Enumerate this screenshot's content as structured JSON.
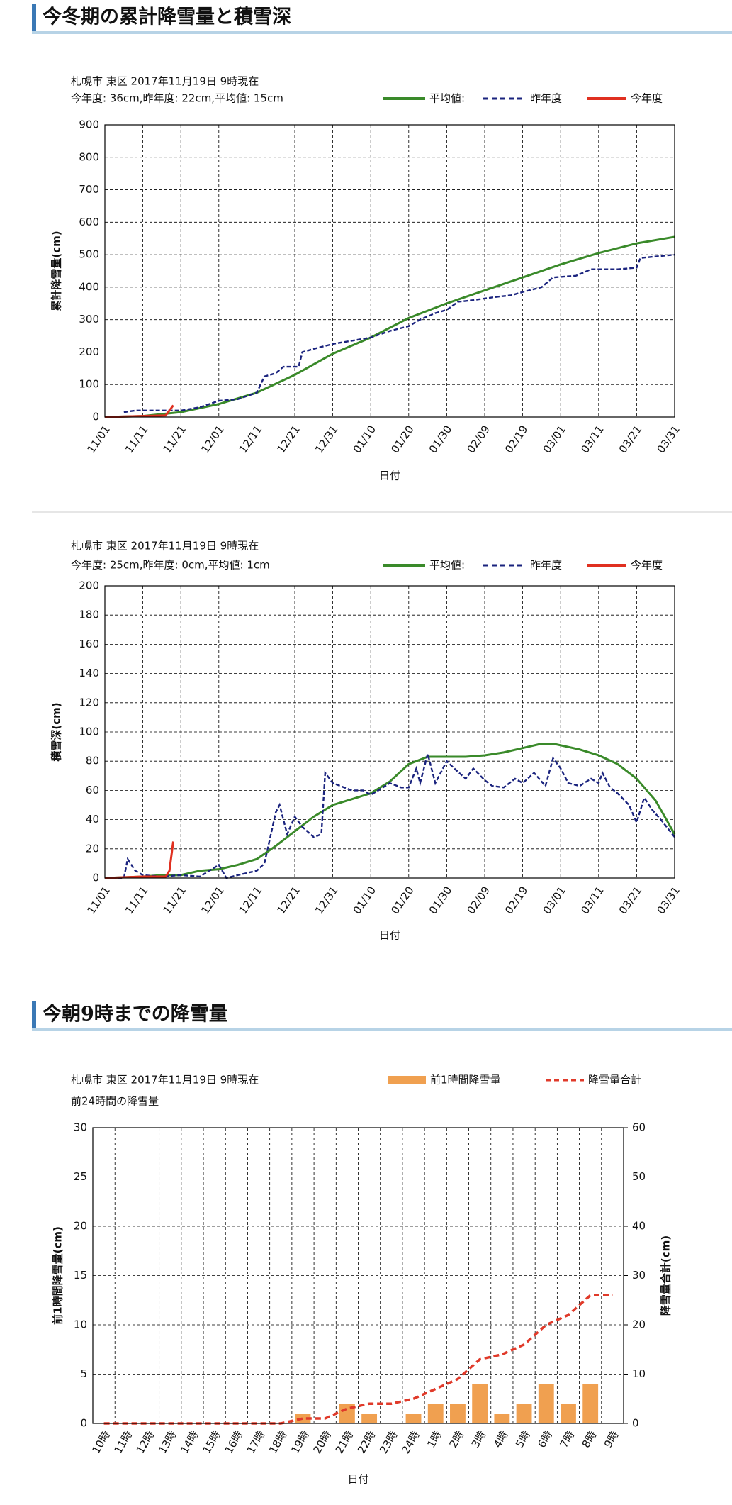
{
  "headings": [
    "今冬期の累計降雪量と積雪深",
    "今朝9時までの降雪量"
  ],
  "chart_data": [
    {
      "type": "line",
      "title": "札幌市 東区 2017年11月19日 9時現在",
      "subtitle": "今年度: 36cm,昨年度: 22cm,平均値: 15cm",
      "y_label": "累計降雪量(cm)",
      "x_label": "日付",
      "xlim": [
        0,
        150
      ],
      "xticks": [
        {
          "value": 0,
          "label": "11/01"
        },
        {
          "value": 10,
          "label": "11/11"
        },
        {
          "value": 20,
          "label": "11/21"
        },
        {
          "value": 30,
          "label": "12/01"
        },
        {
          "value": 40,
          "label": "12/11"
        },
        {
          "value": 50,
          "label": "12/21"
        },
        {
          "value": 60,
          "label": "12/31"
        },
        {
          "value": 70,
          "label": "01/10"
        },
        {
          "value": 80,
          "label": "01/20"
        },
        {
          "value": 90,
          "label": "01/30"
        },
        {
          "value": 100,
          "label": "02/09"
        },
        {
          "value": 110,
          "label": "02/19"
        },
        {
          "value": 120,
          "label": "03/01"
        },
        {
          "value": 130,
          "label": "03/11"
        },
        {
          "value": 140,
          "label": "03/21"
        },
        {
          "value": 150,
          "label": "03/31"
        }
      ],
      "ylim": [
        0,
        900
      ],
      "yticks": [
        0,
        100,
        200,
        300,
        400,
        500,
        600,
        700,
        800,
        900
      ],
      "grid": true,
      "series": [
        {
          "name": "平均値:",
          "color": "#3a8a2a",
          "line_style": "solid",
          "x": [
            0,
            10,
            20,
            30,
            40,
            50,
            60,
            70,
            80,
            90,
            100,
            110,
            120,
            130,
            140,
            150
          ],
          "values": [
            0,
            3,
            15,
            40,
            75,
            130,
            195,
            245,
            305,
            350,
            390,
            430,
            470,
            505,
            535,
            555
          ]
        },
        {
          "name": "昨年度",
          "color": "#1a237e",
          "line_style": "dashed",
          "x": [
            5,
            8,
            20,
            25,
            30,
            35,
            40,
            42,
            45,
            47,
            51,
            52,
            55,
            60,
            65,
            70,
            75,
            80,
            83,
            87,
            90,
            93,
            97,
            100,
            103,
            107,
            110,
            115,
            118,
            124,
            128,
            135,
            140,
            141,
            150
          ],
          "values": [
            15,
            20,
            20,
            30,
            50,
            55,
            75,
            125,
            135,
            155,
            155,
            200,
            210,
            225,
            235,
            245,
            265,
            280,
            300,
            320,
            330,
            355,
            360,
            365,
            370,
            375,
            385,
            400,
            430,
            435,
            455,
            455,
            460,
            490,
            500
          ]
        },
        {
          "name": "今年度",
          "color": "#e03020",
          "line_style": "solid",
          "x": [
            0,
            10,
            16,
            17,
            18
          ],
          "values": [
            0,
            3,
            5,
            20,
            36
          ]
        }
      ]
    },
    {
      "type": "line",
      "title": "札幌市 東区 2017年11月19日 9時現在",
      "subtitle": "今年度: 25cm,昨年度: 0cm,平均値: 1cm",
      "y_label": "積雪深(cm)",
      "x_label": "日付",
      "xlim": [
        0,
        150
      ],
      "xticks": [
        {
          "value": 0,
          "label": "11/01"
        },
        {
          "value": 10,
          "label": "11/11"
        },
        {
          "value": 20,
          "label": "11/21"
        },
        {
          "value": 30,
          "label": "12/01"
        },
        {
          "value": 40,
          "label": "12/11"
        },
        {
          "value": 50,
          "label": "12/21"
        },
        {
          "value": 60,
          "label": "12/31"
        },
        {
          "value": 70,
          "label": "01/10"
        },
        {
          "value": 80,
          "label": "01/20"
        },
        {
          "value": 90,
          "label": "01/30"
        },
        {
          "value": 100,
          "label": "02/09"
        },
        {
          "value": 110,
          "label": "02/19"
        },
        {
          "value": 120,
          "label": "03/01"
        },
        {
          "value": 130,
          "label": "03/11"
        },
        {
          "value": 140,
          "label": "03/21"
        },
        {
          "value": 150,
          "label": "03/31"
        }
      ],
      "ylim": [
        0,
        200
      ],
      "yticks": [
        0,
        20,
        40,
        60,
        80,
        100,
        120,
        140,
        160,
        180,
        200
      ],
      "grid": true,
      "series": [
        {
          "name": "平均値:",
          "color": "#3a8a2a",
          "line_style": "solid",
          "x": [
            0,
            10,
            15,
            20,
            25,
            30,
            35,
            40,
            45,
            50,
            55,
            60,
            65,
            70,
            75,
            80,
            85,
            95,
            100,
            105,
            110,
            115,
            118,
            125,
            130,
            135,
            140,
            145,
            150
          ],
          "values": [
            0,
            1,
            2,
            2,
            5,
            6,
            9,
            13,
            22,
            32,
            42,
            50,
            54,
            58,
            66,
            78,
            83,
            83,
            84,
            86,
            89,
            92,
            92,
            88,
            84,
            78,
            68,
            53,
            30
          ]
        },
        {
          "name": "昨年度",
          "color": "#1a237e",
          "line_style": "dashed",
          "x": [
            0,
            5,
            6,
            8,
            10,
            15,
            20,
            25,
            30,
            32,
            35,
            40,
            42,
            45,
            46,
            48,
            50,
            52,
            55,
            57,
            58,
            60,
            62,
            65,
            68,
            70,
            72,
            75,
            78,
            80,
            82,
            83,
            85,
            87,
            90,
            92,
            95,
            97,
            100,
            102,
            105,
            108,
            110,
            113,
            116,
            118,
            120,
            122,
            125,
            128,
            130,
            131,
            133,
            135,
            138,
            140,
            142,
            144,
            147,
            150
          ],
          "values": [
            0,
            0,
            13,
            5,
            2,
            1,
            2,
            1,
            9,
            0,
            2,
            5,
            10,
            45,
            50,
            30,
            42,
            35,
            28,
            30,
            72,
            65,
            63,
            60,
            60,
            57,
            60,
            65,
            62,
            62,
            75,
            65,
            85,
            65,
            80,
            75,
            68,
            75,
            67,
            63,
            62,
            68,
            65,
            72,
            63,
            82,
            75,
            65,
            63,
            68,
            65,
            72,
            62,
            58,
            50,
            38,
            55,
            47,
            38,
            28
          ]
        },
        {
          "name": "今年度",
          "color": "#e03020",
          "line_style": "solid",
          "x": [
            0,
            10,
            16,
            17,
            18
          ],
          "values": [
            0,
            1,
            1,
            5,
            25
          ]
        }
      ]
    },
    {
      "type": "bar",
      "title": "札幌市 東区 2017年11月19日 9時現在",
      "subtitle": "前24時間の降雪量",
      "y_label": "前1時間降雪量(cm)",
      "y2_label": "降雪量合計(cm)",
      "x_label": "日付",
      "categories": [
        "10時",
        "11時",
        "12時",
        "13時",
        "14時",
        "15時",
        "16時",
        "17時",
        "18時",
        "19時",
        "20時",
        "21時",
        "22時",
        "23時",
        "24時",
        "1時",
        "2時",
        "3時",
        "4時",
        "5時",
        "6時",
        "7時",
        "8時",
        "9時"
      ],
      "ylim": [
        0,
        30
      ],
      "yticks": [
        0,
        5,
        10,
        15,
        20,
        25,
        30
      ],
      "y2lim": [
        0,
        60
      ],
      "y2ticks": [
        0,
        10,
        20,
        30,
        40,
        50,
        60
      ],
      "grid": true,
      "series": [
        {
          "name": "前1時間降雪量",
          "color": "#f0a050",
          "values": [
            0,
            0,
            0,
            0,
            0,
            0,
            0,
            0,
            0,
            1,
            0,
            2,
            1,
            0,
            1,
            2,
            2,
            4,
            1,
            2,
            4,
            2,
            4,
            0
          ]
        },
        {
          "name": "降雪量合計",
          "color": "#e03a2a",
          "line_style": "dashed",
          "axis": "y2",
          "values": [
            0,
            0,
            0,
            0,
            0,
            0,
            0,
            0,
            0,
            1,
            1,
            3,
            4,
            4,
            5,
            7,
            9,
            13,
            14,
            16,
            20,
            22,
            26,
            26
          ]
        }
      ]
    }
  ]
}
